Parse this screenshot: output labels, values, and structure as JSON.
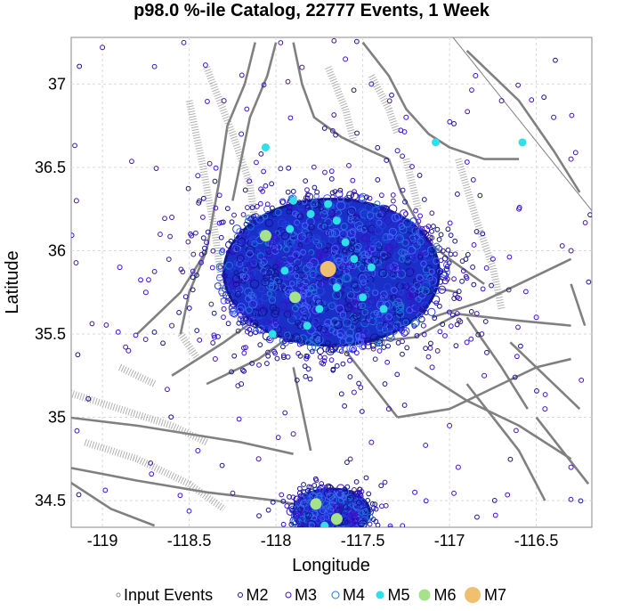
{
  "chart_data": {
    "type": "scatter",
    "title": "p98.0 %-ile Catalog, 22777 Events, 1 Week",
    "xlabel": "Longitude",
    "ylabel": "Latitude",
    "xlim": [
      -119.18,
      -116.18
    ],
    "ylim": [
      34.34,
      37.28
    ],
    "x_ticks": [
      -119,
      -118.5,
      -118,
      -117.5,
      -117,
      -116.5
    ],
    "x_tick_labels": [
      "-119",
      "-118.5",
      "-118",
      "-117.5",
      "-117",
      "-116.5"
    ],
    "y_ticks": [
      34.5,
      35,
      35.5,
      36,
      36.5,
      37
    ],
    "y_tick_labels": [
      "34.5",
      "35",
      "35.5",
      "36",
      "36.5",
      "37"
    ],
    "grid": true,
    "legend_placement": "bottom",
    "legend": [
      {
        "label": "Input Events",
        "marker": "open-circle",
        "color": "#888888"
      },
      {
        "label": "M2",
        "marker": "open-circle",
        "color": "#12128c"
      },
      {
        "label": "M3",
        "marker": "open-circle",
        "color": "#3a10c8"
      },
      {
        "label": "M4",
        "marker": "open-circle",
        "color": "#1f78d8"
      },
      {
        "label": "M5",
        "marker": "filled-circle",
        "color": "#2fe0e8"
      },
      {
        "label": "M6",
        "marker": "filled-circle",
        "color": "#a6e28a"
      },
      {
        "label": "M7",
        "marker": "filled-circle",
        "color": "#f0c070"
      }
    ],
    "clusters": [
      {
        "name": "main",
        "center": [
          -117.68,
          35.87
        ],
        "radius_deg": [
          0.62,
          0.44
        ]
      },
      {
        "name": "south",
        "center": [
          -117.68,
          34.43
        ],
        "radius_deg": [
          0.22,
          0.14
        ]
      }
    ],
    "large_events": [
      {
        "x": -117.7,
        "y": 35.89,
        "mag": "M7"
      },
      {
        "x": -118.06,
        "y": 36.09,
        "mag": "M6"
      },
      {
        "x": -117.89,
        "y": 35.72,
        "mag": "M6"
      },
      {
        "x": -117.77,
        "y": 34.48,
        "mag": "M6"
      },
      {
        "x": -117.65,
        "y": 34.39,
        "mag": "M6"
      },
      {
        "x": -118.06,
        "y": 36.62,
        "mag": "M5"
      },
      {
        "x": -117.08,
        "y": 36.65,
        "mag": "M5"
      },
      {
        "x": -117.65,
        "y": 35.78,
        "mag": "M5"
      },
      {
        "x": -117.92,
        "y": 36.13,
        "mag": "M5"
      },
      {
        "x": -117.8,
        "y": 36.22,
        "mag": "M5"
      },
      {
        "x": -117.7,
        "y": 36.28,
        "mag": "M5"
      },
      {
        "x": -117.95,
        "y": 35.88,
        "mag": "M5"
      },
      {
        "x": -117.6,
        "y": 36.05,
        "mag": "M5"
      },
      {
        "x": -117.5,
        "y": 35.72,
        "mag": "M5"
      },
      {
        "x": -117.38,
        "y": 35.65,
        "mag": "M5"
      },
      {
        "x": -117.82,
        "y": 35.55,
        "mag": "M5"
      },
      {
        "x": -118.02,
        "y": 35.5,
        "mag": "M5"
      },
      {
        "x": -117.55,
        "y": 35.95,
        "mag": "M5"
      },
      {
        "x": -117.75,
        "y": 35.65,
        "mag": "M5"
      },
      {
        "x": -117.65,
        "y": 36.18,
        "mag": "M5"
      },
      {
        "x": -117.45,
        "y": 35.9,
        "mag": "M5"
      },
      {
        "x": -117.9,
        "y": 36.3,
        "mag": "M5"
      },
      {
        "x": -117.72,
        "y": 34.35,
        "mag": "M5"
      },
      {
        "x": -116.58,
        "y": 36.65,
        "mag": "M5"
      }
    ],
    "isolated_events": [
      {
        "x": -119.15,
        "y": 36.3
      },
      {
        "x": -119.0,
        "y": 37.22
      },
      {
        "x": -118.45,
        "y": 36.45
      },
      {
        "x": -118.3,
        "y": 36.9
      },
      {
        "x": -118.9,
        "y": 35.9
      },
      {
        "x": -118.75,
        "y": 35.75
      },
      {
        "x": -118.6,
        "y": 35.55
      },
      {
        "x": -118.35,
        "y": 35.35
      },
      {
        "x": -118.2,
        "y": 35.2
      },
      {
        "x": -118.45,
        "y": 34.8
      },
      {
        "x": -117.3,
        "y": 36.6
      },
      {
        "x": -117.25,
        "y": 36.8
      },
      {
        "x": -117.45,
        "y": 37.0
      },
      {
        "x": -116.85,
        "y": 37.05
      },
      {
        "x": -116.7,
        "y": 36.9
      },
      {
        "x": -116.4,
        "y": 36.8
      },
      {
        "x": -116.3,
        "y": 36.55
      },
      {
        "x": -116.6,
        "y": 36.25
      },
      {
        "x": -116.75,
        "y": 35.95
      },
      {
        "x": -116.5,
        "y": 35.6
      },
      {
        "x": -116.9,
        "y": 35.45
      },
      {
        "x": -117.1,
        "y": 35.3
      },
      {
        "x": -116.8,
        "y": 35.25
      },
      {
        "x": -117.35,
        "y": 35.05
      },
      {
        "x": -117.0,
        "y": 34.95
      },
      {
        "x": -116.45,
        "y": 35.05
      },
      {
        "x": -116.3,
        "y": 34.7
      },
      {
        "x": -117.9,
        "y": 34.9
      },
      {
        "x": -118.1,
        "y": 34.75
      },
      {
        "x": -117.2,
        "y": 34.55
      },
      {
        "x": -116.95,
        "y": 34.7
      },
      {
        "x": -118.6,
        "y": 36.2
      },
      {
        "x": -118.2,
        "y": 36.7
      },
      {
        "x": -117.6,
        "y": 37.15
      },
      {
        "x": -117.85,
        "y": 37.1
      },
      {
        "x": -116.3,
        "y": 36.0
      },
      {
        "x": -118.85,
        "y": 35.4
      },
      {
        "x": -117.45,
        "y": 34.85
      },
      {
        "x": -117.55,
        "y": 35.15
      },
      {
        "x": -117.15,
        "y": 35.55
      },
      {
        "x": -118.3,
        "y": 35.65
      },
      {
        "x": -118.4,
        "y": 36.05
      }
    ]
  },
  "colors": {
    "dense_fill": "#1a2fc8",
    "dense_edge": "#0d1a8c",
    "fault_line": "#808080",
    "boundary_line": "#909090",
    "grid": "#d9d9d9"
  }
}
